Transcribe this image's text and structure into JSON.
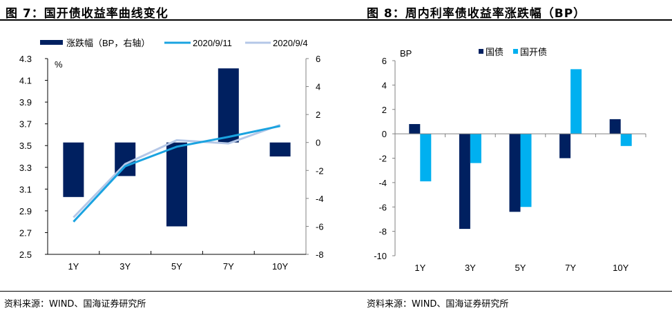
{
  "chart_data": [
    {
      "type": "bar+line",
      "title": "图 7：国开债收益率曲线变化",
      "categories": [
        "1Y",
        "3Y",
        "5Y",
        "7Y",
        "10Y"
      ],
      "left_axis": {
        "label": "%",
        "ylim": [
          2.5,
          4.3
        ],
        "ticks": [
          "4.3",
          "4.1",
          "3.9",
          "3.7",
          "3.5",
          "3.3",
          "3.1",
          "2.9",
          "2.7",
          "2.5"
        ]
      },
      "right_axis": {
        "ylim": [
          -8,
          6
        ],
        "ticks": [
          "6",
          "4",
          "2",
          "0",
          "-2",
          "-4",
          "-6",
          "-8"
        ]
      },
      "series": [
        {
          "name": "涨跌幅（BP，右轴）",
          "type": "bar",
          "axis": "right",
          "color": "#002060",
          "values": [
            -3.9,
            -2.4,
            -6.0,
            5.3,
            -1.0
          ]
        },
        {
          "name": "2020/9/11",
          "type": "line",
          "axis": "left",
          "color": "#1AA3E0",
          "values": [
            2.8,
            3.31,
            3.49,
            3.58,
            3.68
          ]
        },
        {
          "name": "2020/9/4",
          "type": "line",
          "axis": "left",
          "color": "#B4C7E7",
          "values": [
            2.84,
            3.33,
            3.55,
            3.52,
            3.69
          ]
        }
      ],
      "legend_position": "top",
      "source": "资料来源：WIND、国海证券研究所"
    },
    {
      "type": "bar",
      "title": "图 8：周内利率债收益率涨跌幅（BP）",
      "categories": [
        "1Y",
        "3Y",
        "5Y",
        "7Y",
        "10Y"
      ],
      "ylabel": "BP",
      "ylim": [
        -10,
        6
      ],
      "ticks": [
        "6",
        "4",
        "2",
        "0",
        "-2",
        "-4",
        "-6",
        "-8",
        "-10"
      ],
      "series": [
        {
          "name": "国债",
          "color": "#002060",
          "values": [
            0.8,
            -7.8,
            -6.4,
            -2.0,
            1.2
          ]
        },
        {
          "name": "国开债",
          "color": "#00B0F0",
          "values": [
            -3.9,
            -2.4,
            -6.0,
            5.3,
            -1.0
          ]
        }
      ],
      "legend_position": "top",
      "source": "资料来源：WIND、国海证券研究所"
    }
  ]
}
